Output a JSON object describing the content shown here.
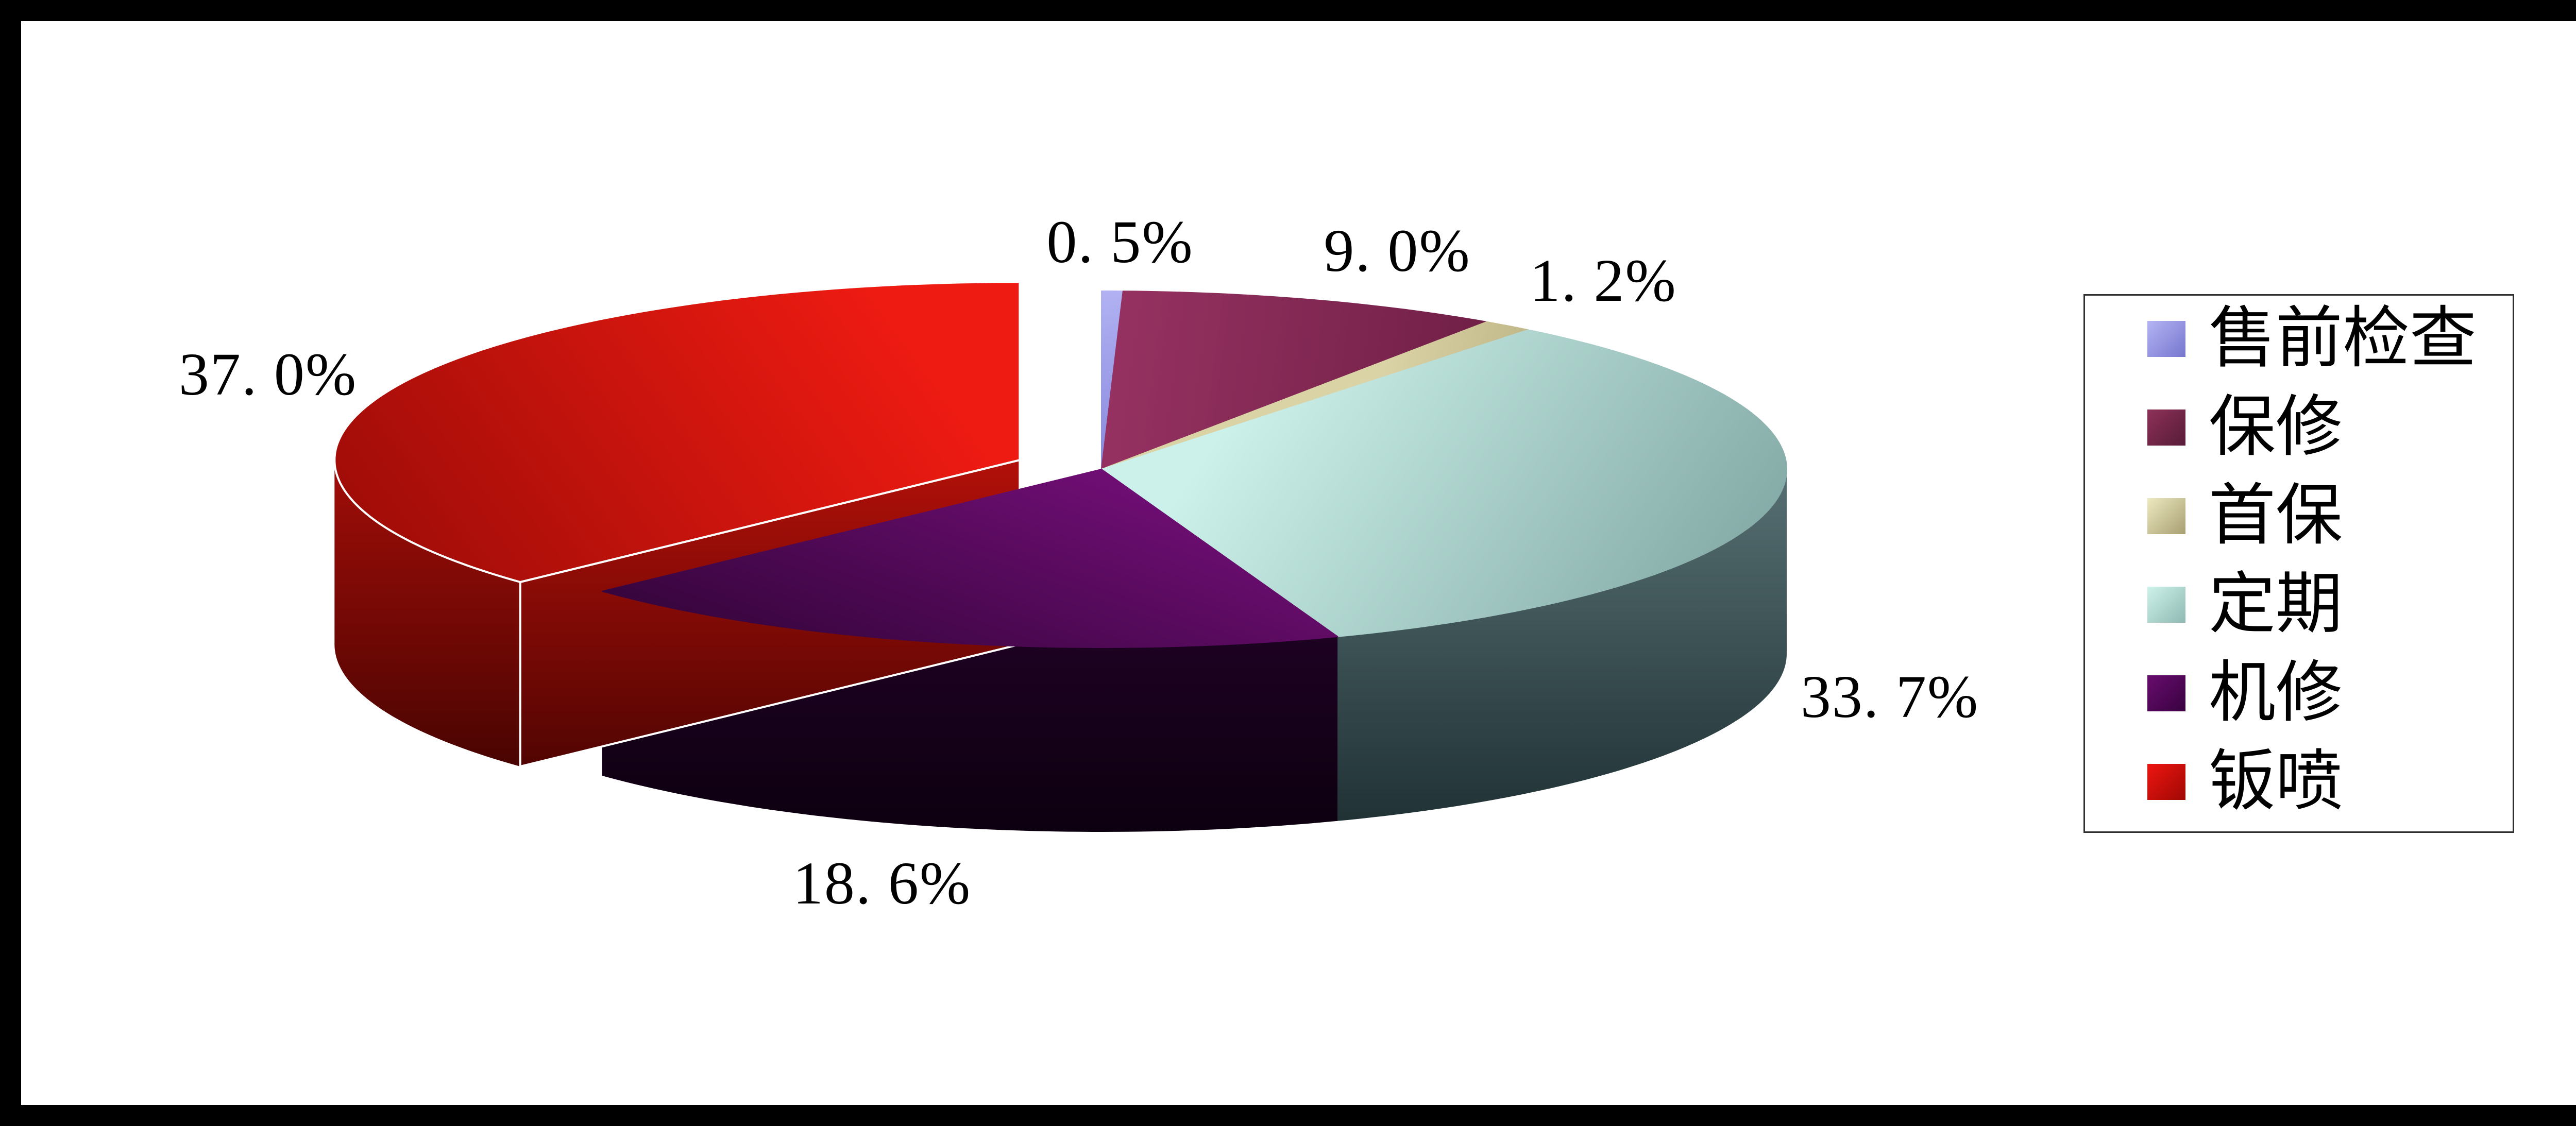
{
  "frame": {
    "border_color": "#000000",
    "background": "#ffffff"
  },
  "chart_data": {
    "type": "pie",
    "pie_3d": true,
    "title": "",
    "start_angle_deg_from_12_oclock": 0,
    "direction": "clockwise",
    "legend_position": "right",
    "labels_shown": "percent",
    "explode": {
      "slice": "钣喷",
      "offset_fraction": 0.13,
      "direction": "upper-left"
    },
    "categories": [
      "售前检查",
      "保修",
      "首保",
      "定期",
      "机修",
      "钣喷"
    ],
    "values": [
      0.5,
      9.0,
      1.2,
      33.7,
      18.6,
      37.0
    ],
    "series": [
      {
        "label": "售前检查",
        "value": 0.5,
        "display_label": "0. 5%",
        "color": "#9c9cee",
        "color_top": [
          "#b1b1f3",
          "#8888dd"
        ],
        "legend_swatch": [
          "#b4b4f4",
          "#7676ce"
        ]
      },
      {
        "label": "保修",
        "value": 9.0,
        "display_label": "9. 0%",
        "color": "#8e3157",
        "color_top": [
          "#943160",
          "#6e1e45"
        ],
        "legend_swatch": [
          "#8e3057",
          "#571c39"
        ]
      },
      {
        "label": "首保",
        "value": 1.2,
        "display_label": "1. 2%",
        "color": "#d5cea0",
        "color_top": [
          "#dad3a6",
          "#bfb686"
        ],
        "legend_swatch": [
          "#ede9c0",
          "#a89f72"
        ]
      },
      {
        "label": "定期",
        "value": 33.7,
        "display_label": "33. 7%",
        "color": "#c9efe8",
        "color_top": [
          "#ccf1ea",
          "#7ba19e"
        ],
        "color_side": [
          "#577073",
          "#1d2e31"
        ],
        "legend_swatch": [
          "#cdf2ea",
          "#8fb9b3"
        ]
      },
      {
        "label": "机修",
        "value": 18.6,
        "display_label": "18. 6%",
        "color": "#6e0d73",
        "color_top": [
          "#700e75",
          "#2a0330"
        ],
        "color_side": [
          "#2b0331",
          "#0c000f"
        ],
        "legend_swatch": [
          "#690c6e",
          "#380240"
        ]
      },
      {
        "label": "钣喷",
        "value": 37.0,
        "display_label": "37. 0%",
        "exploded": true,
        "color": "#ed1a12",
        "color_top": [
          "#ee1b12",
          "#9a0b07"
        ],
        "color_side": [
          "#a00d08",
          "#330200"
        ],
        "color_cut": [
          "#b21009",
          "#4e0402"
        ],
        "legend_swatch": [
          "#ee1510",
          "#a00804"
        ]
      }
    ]
  },
  "legend": {
    "items": [
      {
        "label": "售前检查"
      },
      {
        "label": "保修"
      },
      {
        "label": "首保"
      },
      {
        "label": "定期"
      },
      {
        "label": "机修"
      },
      {
        "label": "钣喷"
      }
    ]
  }
}
